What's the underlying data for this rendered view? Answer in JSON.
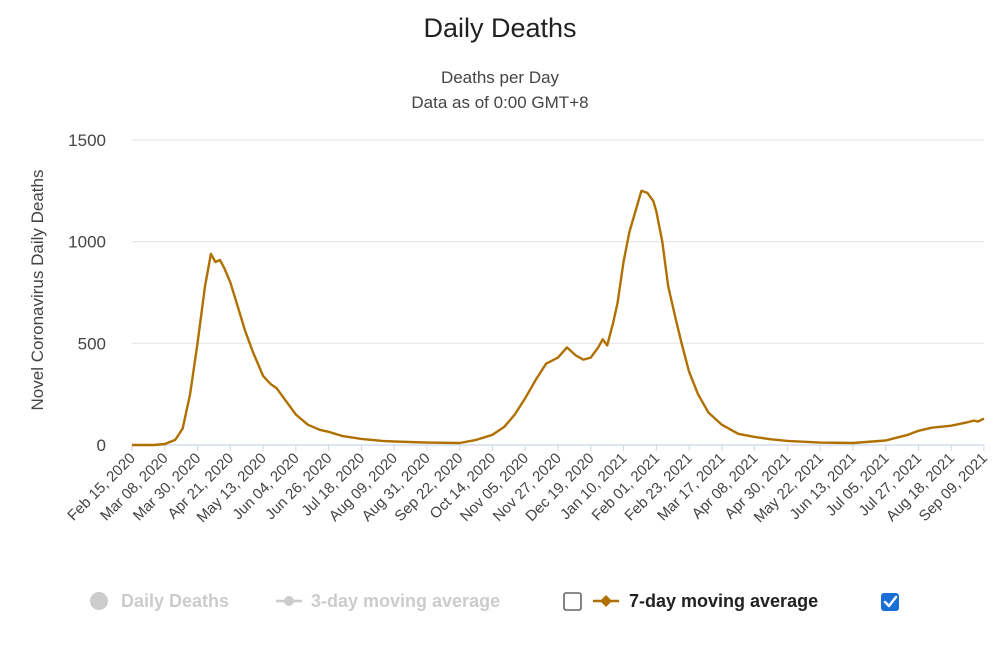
{
  "chart_data": {
    "type": "line",
    "title": "Daily Deaths",
    "subtitle_lines": [
      "Deaths per Day",
      "Data as of 0:00 GMT+8"
    ],
    "ylabel": "Novel Coronavirus Daily Deaths",
    "xlabel": "",
    "ylim": [
      0,
      1500
    ],
    "yticks": [
      0,
      500,
      1000,
      1500
    ],
    "y_tick_labels": [
      "0",
      "500",
      "1000",
      "1500"
    ],
    "grid": "horizontal",
    "x_ticks": [
      "Feb 15, 2020",
      "Mar 08, 2020",
      "Mar 30, 2020",
      "Apr 21, 2020",
      "May 13, 2020",
      "Jun 04, 2020",
      "Jun 26, 2020",
      "Jul 18, 2020",
      "Aug 09, 2020",
      "Aug 31, 2020",
      "Sep 22, 2020",
      "Oct 14, 2020",
      "Nov 05, 2020",
      "Nov 27, 2020",
      "Dec 19, 2020",
      "Jan 10, 2021",
      "Feb 01, 2021",
      "Feb 23, 2021",
      "Mar 17, 2021",
      "Apr 08, 2021",
      "Apr 30, 2021",
      "May 22, 2021",
      "Jun 13, 2021",
      "Jul 05, 2021",
      "Jul 27, 2021",
      "Aug 18, 2021",
      "Sep 09, 2021"
    ],
    "legend_position": "bottom",
    "series": [
      {
        "name": "7-day moving average",
        "color": "#b07000",
        "visible": true,
        "points": [
          [
            "Feb 15, 2020",
            0
          ],
          [
            "Mar 01, 2020",
            0
          ],
          [
            "Mar 08, 2020",
            5
          ],
          [
            "Mar 15, 2020",
            25
          ],
          [
            "Mar 20, 2020",
            80
          ],
          [
            "Mar 25, 2020",
            250
          ],
          [
            "Mar 30, 2020",
            500
          ],
          [
            "Apr 04, 2020",
            780
          ],
          [
            "Apr 08, 2020",
            940
          ],
          [
            "Apr 11, 2020",
            900
          ],
          [
            "Apr 14, 2020",
            910
          ],
          [
            "Apr 17, 2020",
            870
          ],
          [
            "Apr 21, 2020",
            800
          ],
          [
            "Apr 26, 2020",
            680
          ],
          [
            "May 01, 2020",
            560
          ],
          [
            "May 06, 2020",
            460
          ],
          [
            "May 13, 2020",
            340
          ],
          [
            "May 18, 2020",
            300
          ],
          [
            "May 22, 2020",
            280
          ],
          [
            "May 27, 2020",
            230
          ],
          [
            "Jun 04, 2020",
            150
          ],
          [
            "Jun 12, 2020",
            100
          ],
          [
            "Jun 20, 2020",
            75
          ],
          [
            "Jun 26, 2020",
            65
          ],
          [
            "Jul 05, 2020",
            45
          ],
          [
            "Jul 18, 2020",
            30
          ],
          [
            "Aug 01, 2020",
            20
          ],
          [
            "Aug 09, 2020",
            17
          ],
          [
            "Aug 31, 2020",
            12
          ],
          [
            "Sep 22, 2020",
            10
          ],
          [
            "Oct 03, 2020",
            25
          ],
          [
            "Oct 14, 2020",
            50
          ],
          [
            "Oct 22, 2020",
            90
          ],
          [
            "Oct 29, 2020",
            150
          ],
          [
            "Nov 05, 2020",
            230
          ],
          [
            "Nov 12, 2020",
            320
          ],
          [
            "Nov 19, 2020",
            400
          ],
          [
            "Nov 27, 2020",
            430
          ],
          [
            "Dec 03, 2020",
            480
          ],
          [
            "Dec 09, 2020",
            440
          ],
          [
            "Dec 14, 2020",
            420
          ],
          [
            "Dec 19, 2020",
            430
          ],
          [
            "Dec 24, 2020",
            480
          ],
          [
            "Dec 27, 2020",
            520
          ],
          [
            "Dec 30, 2020",
            490
          ],
          [
            "Jan 03, 2021",
            600
          ],
          [
            "Jan 06, 2021",
            700
          ],
          [
            "Jan 10, 2021",
            900
          ],
          [
            "Jan 14, 2021",
            1050
          ],
          [
            "Jan 18, 2021",
            1150
          ],
          [
            "Jan 22, 2021",
            1250
          ],
          [
            "Jan 26, 2021",
            1240
          ],
          [
            "Jan 30, 2021",
            1200
          ],
          [
            "Feb 01, 2021",
            1150
          ],
          [
            "Feb 05, 2021",
            1000
          ],
          [
            "Feb 09, 2021",
            780
          ],
          [
            "Feb 14, 2021",
            620
          ],
          [
            "Feb 18, 2021",
            500
          ],
          [
            "Feb 23, 2021",
            360
          ],
          [
            "Mar 01, 2021",
            250
          ],
          [
            "Mar 08, 2021",
            160
          ],
          [
            "Mar 17, 2021",
            100
          ],
          [
            "Mar 28, 2021",
            55
          ],
          [
            "Apr 08, 2021",
            40
          ],
          [
            "Apr 19, 2021",
            28
          ],
          [
            "Apr 30, 2021",
            20
          ],
          [
            "May 22, 2021",
            12
          ],
          [
            "Jun 13, 2021",
            10
          ],
          [
            "Jul 05, 2021",
            22
          ],
          [
            "Jul 20, 2021",
            50
          ],
          [
            "Jul 27, 2021",
            70
          ],
          [
            "Aug 05, 2021",
            85
          ],
          [
            "Aug 18, 2021",
            95
          ],
          [
            "Aug 28, 2021",
            110
          ],
          [
            "Sep 02, 2021",
            120
          ],
          [
            "Sep 05, 2021",
            115
          ],
          [
            "Sep 09, 2021",
            130
          ]
        ]
      }
    ]
  },
  "legend": [
    {
      "label": "Daily Deaths",
      "style": "dot",
      "active": false,
      "color": "#cccccc"
    },
    {
      "label": "3-day moving average",
      "style": "line-dot",
      "active": false,
      "color": "#cccccc",
      "checkbox": false
    },
    {
      "label": "7-day moving average",
      "style": "line-diamond",
      "active": true,
      "color": "#b07000",
      "checkbox": true
    }
  ],
  "colors": {
    "line": "#b07000",
    "grid": "#e6e6e6",
    "axis": "#ccd6eb",
    "checkbox_checked": "#1a6fd6",
    "legend_inactive": "#cccccc",
    "legend_active": "#222222"
  }
}
